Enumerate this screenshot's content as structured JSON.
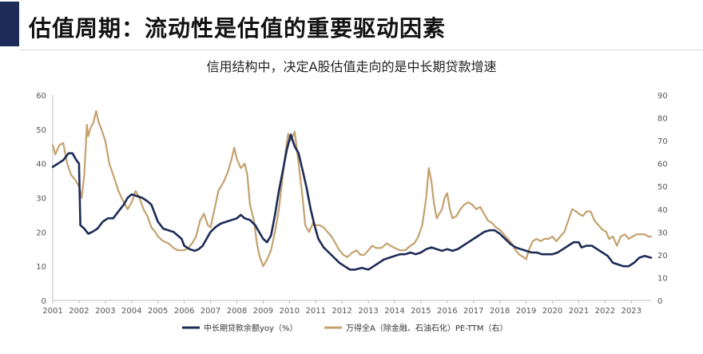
{
  "header": {
    "title": "估值周期：流动性是估值的重要驱动因素"
  },
  "colors": {
    "accent": "#1c2b57",
    "series_loan": "#1c2b57",
    "series_pe": "#c4a16e"
  },
  "chart_data": {
    "type": "line",
    "title": "信用结构中，决定A股估值走向的是中长期贷款增速",
    "xlabel": "",
    "ylabel": "",
    "xlim": [
      2001,
      2023.75
    ],
    "ylim_left": [
      0,
      60
    ],
    "ylim_right": [
      0,
      90
    ],
    "left_ticks": [
      "0",
      "10",
      "20",
      "30",
      "40",
      "50",
      "60"
    ],
    "right_ticks": [
      "0",
      "10",
      "20",
      "30",
      "40",
      "50",
      "60",
      "70",
      "80",
      "90"
    ],
    "x_ticks": [
      "2001",
      "2002",
      "2003",
      "2004",
      "2005",
      "2006",
      "2007",
      "2008",
      "2009",
      "2010",
      "2011",
      "2012",
      "2013",
      "2014",
      "2015",
      "2016",
      "2017",
      "2018",
      "2019",
      "2020",
      "2021",
      "2022",
      "2023"
    ],
    "grid": false,
    "legend_position": "bottom",
    "series": [
      {
        "name": "中长期贷款余额yoy（%）",
        "axis": "left",
        "points": [
          [
            2001.0,
            39
          ],
          [
            2001.2,
            40
          ],
          [
            2001.4,
            41
          ],
          [
            2001.6,
            43
          ],
          [
            2001.75,
            43
          ],
          [
            2001.9,
            41
          ],
          [
            2002.0,
            40
          ],
          [
            2002.05,
            22
          ],
          [
            2002.2,
            21
          ],
          [
            2002.35,
            19.5
          ],
          [
            2002.5,
            20
          ],
          [
            2002.7,
            21
          ],
          [
            2002.9,
            23
          ],
          [
            2003.1,
            24
          ],
          [
            2003.3,
            24
          ],
          [
            2003.5,
            26
          ],
          [
            2003.7,
            28
          ],
          [
            2003.85,
            30
          ],
          [
            2004.0,
            31
          ],
          [
            2004.2,
            30.5
          ],
          [
            2004.4,
            30
          ],
          [
            2004.6,
            29
          ],
          [
            2004.75,
            28
          ],
          [
            2004.9,
            25
          ],
          [
            2005.0,
            23
          ],
          [
            2005.2,
            21
          ],
          [
            2005.4,
            20.5
          ],
          [
            2005.6,
            20
          ],
          [
            2005.75,
            19
          ],
          [
            2005.9,
            18
          ],
          [
            2006.0,
            16
          ],
          [
            2006.2,
            15
          ],
          [
            2006.4,
            14.5
          ],
          [
            2006.55,
            15
          ],
          [
            2006.7,
            16
          ],
          [
            2006.85,
            18
          ],
          [
            2007.0,
            20
          ],
          [
            2007.2,
            21.5
          ],
          [
            2007.4,
            22.5
          ],
          [
            2007.6,
            23
          ],
          [
            2007.8,
            23.5
          ],
          [
            2008.0,
            24
          ],
          [
            2008.15,
            25
          ],
          [
            2008.3,
            24
          ],
          [
            2008.5,
            23.5
          ],
          [
            2008.7,
            22
          ],
          [
            2008.85,
            20
          ],
          [
            2009.0,
            18
          ],
          [
            2009.15,
            17
          ],
          [
            2009.3,
            19
          ],
          [
            2009.45,
            25
          ],
          [
            2009.6,
            32
          ],
          [
            2009.75,
            38
          ],
          [
            2009.9,
            44
          ],
          [
            2010.05,
            48.5
          ],
          [
            2010.2,
            45
          ],
          [
            2010.35,
            43
          ],
          [
            2010.5,
            38
          ],
          [
            2010.65,
            33
          ],
          [
            2010.8,
            27
          ],
          [
            2010.95,
            22
          ],
          [
            2011.1,
            18
          ],
          [
            2011.3,
            15.5
          ],
          [
            2011.5,
            14
          ],
          [
            2011.7,
            12.5
          ],
          [
            2011.9,
            11
          ],
          [
            2012.1,
            10
          ],
          [
            2012.3,
            9
          ],
          [
            2012.5,
            9
          ],
          [
            2012.75,
            9.5
          ],
          [
            2013.0,
            9
          ],
          [
            2013.2,
            10
          ],
          [
            2013.4,
            11
          ],
          [
            2013.6,
            12
          ],
          [
            2013.8,
            12.5
          ],
          [
            2014.0,
            13
          ],
          [
            2014.2,
            13.5
          ],
          [
            2014.4,
            13.5
          ],
          [
            2014.6,
            14
          ],
          [
            2014.8,
            13.5
          ],
          [
            2015.0,
            14
          ],
          [
            2015.2,
            15
          ],
          [
            2015.4,
            15.5
          ],
          [
            2015.6,
            15
          ],
          [
            2015.8,
            14.5
          ],
          [
            2016.0,
            15
          ],
          [
            2016.2,
            14.5
          ],
          [
            2016.4,
            15
          ],
          [
            2016.6,
            16
          ],
          [
            2016.8,
            17
          ],
          [
            2017.0,
            18
          ],
          [
            2017.2,
            19
          ],
          [
            2017.4,
            20
          ],
          [
            2017.6,
            20.5
          ],
          [
            2017.8,
            20.5
          ],
          [
            2018.0,
            19.5
          ],
          [
            2018.2,
            18
          ],
          [
            2018.4,
            16.5
          ],
          [
            2018.6,
            15.5
          ],
          [
            2018.8,
            15
          ],
          [
            2019.0,
            14.5
          ],
          [
            2019.2,
            14
          ],
          [
            2019.4,
            14
          ],
          [
            2019.6,
            13.5
          ],
          [
            2019.8,
            13.5
          ],
          [
            2020.0,
            13.5
          ],
          [
            2020.2,
            14
          ],
          [
            2020.4,
            15
          ],
          [
            2020.6,
            16
          ],
          [
            2020.8,
            17
          ],
          [
            2021.0,
            17
          ],
          [
            2021.1,
            15.5
          ],
          [
            2021.3,
            16
          ],
          [
            2021.5,
            16
          ],
          [
            2021.7,
            15
          ],
          [
            2021.9,
            14
          ],
          [
            2022.1,
            13
          ],
          [
            2022.3,
            11
          ],
          [
            2022.5,
            10.5
          ],
          [
            2022.7,
            10
          ],
          [
            2022.9,
            10
          ],
          [
            2023.1,
            11
          ],
          [
            2023.3,
            12.5
          ],
          [
            2023.5,
            13
          ],
          [
            2023.75,
            12.5
          ]
        ]
      },
      {
        "name": "万得全A（除金融、石油石化）PE-TTM（右）",
        "axis": "right",
        "points": [
          [
            2001.0,
            68
          ],
          [
            2001.1,
            64
          ],
          [
            2001.25,
            68
          ],
          [
            2001.4,
            69
          ],
          [
            2001.55,
            60
          ],
          [
            2001.7,
            55
          ],
          [
            2001.85,
            53
          ],
          [
            2002.0,
            50
          ],
          [
            2002.1,
            45
          ],
          [
            2002.2,
            55
          ],
          [
            2002.3,
            77
          ],
          [
            2002.35,
            72
          ],
          [
            2002.45,
            76
          ],
          [
            2002.55,
            78
          ],
          [
            2002.65,
            83
          ],
          [
            2002.75,
            78
          ],
          [
            2002.85,
            75
          ],
          [
            2003.0,
            70
          ],
          [
            2003.15,
            60
          ],
          [
            2003.3,
            55
          ],
          [
            2003.5,
            48
          ],
          [
            2003.7,
            43
          ],
          [
            2003.85,
            40
          ],
          [
            2004.0,
            43
          ],
          [
            2004.15,
            48
          ],
          [
            2004.3,
            45
          ],
          [
            2004.45,
            40
          ],
          [
            2004.6,
            37
          ],
          [
            2004.75,
            32
          ],
          [
            2004.9,
            30
          ],
          [
            2005.0,
            28
          ],
          [
            2005.2,
            26
          ],
          [
            2005.4,
            25
          ],
          [
            2005.6,
            23
          ],
          [
            2005.75,
            22
          ],
          [
            2005.9,
            22
          ],
          [
            2006.0,
            22
          ],
          [
            2006.15,
            23
          ],
          [
            2006.3,
            25
          ],
          [
            2006.45,
            28
          ],
          [
            2006.6,
            35
          ],
          [
            2006.75,
            38
          ],
          [
            2006.9,
            33
          ],
          [
            2007.0,
            32
          ],
          [
            2007.15,
            40
          ],
          [
            2007.3,
            48
          ],
          [
            2007.5,
            52
          ],
          [
            2007.65,
            56
          ],
          [
            2007.8,
            62
          ],
          [
            2007.9,
            67
          ],
          [
            2008.0,
            62
          ],
          [
            2008.15,
            58
          ],
          [
            2008.3,
            60
          ],
          [
            2008.4,
            55
          ],
          [
            2008.5,
            42
          ],
          [
            2008.65,
            35
          ],
          [
            2008.75,
            26
          ],
          [
            2008.85,
            20
          ],
          [
            2009.0,
            15
          ],
          [
            2009.15,
            18
          ],
          [
            2009.3,
            22
          ],
          [
            2009.45,
            30
          ],
          [
            2009.6,
            40
          ],
          [
            2009.75,
            55
          ],
          [
            2009.85,
            65
          ],
          [
            2009.95,
            73
          ],
          [
            2010.05,
            70
          ],
          [
            2010.2,
            74
          ],
          [
            2010.35,
            60
          ],
          [
            2010.5,
            45
          ],
          [
            2010.6,
            33
          ],
          [
            2010.75,
            30
          ],
          [
            2010.9,
            34
          ],
          [
            2011.0,
            33
          ],
          [
            2011.15,
            33
          ],
          [
            2011.3,
            32
          ],
          [
            2011.45,
            30
          ],
          [
            2011.6,
            28
          ],
          [
            2011.75,
            25
          ],
          [
            2011.9,
            22
          ],
          [
            2012.05,
            20
          ],
          [
            2012.2,
            19
          ],
          [
            2012.4,
            21
          ],
          [
            2012.55,
            22
          ],
          [
            2012.7,
            20
          ],
          [
            2012.85,
            20
          ],
          [
            2013.0,
            22
          ],
          [
            2013.15,
            24
          ],
          [
            2013.3,
            23
          ],
          [
            2013.5,
            23
          ],
          [
            2013.7,
            25
          ],
          [
            2013.85,
            24
          ],
          [
            2014.0,
            23
          ],
          [
            2014.2,
            22
          ],
          [
            2014.4,
            22
          ],
          [
            2014.6,
            24
          ],
          [
            2014.75,
            25
          ],
          [
            2014.9,
            28
          ],
          [
            2015.05,
            33
          ],
          [
            2015.2,
            45
          ],
          [
            2015.3,
            58
          ],
          [
            2015.4,
            52
          ],
          [
            2015.5,
            42
          ],
          [
            2015.6,
            36
          ],
          [
            2015.7,
            38
          ],
          [
            2015.8,
            40
          ],
          [
            2015.9,
            45
          ],
          [
            2016.0,
            47
          ],
          [
            2016.1,
            40
          ],
          [
            2016.2,
            36
          ],
          [
            2016.35,
            37
          ],
          [
            2016.5,
            40
          ],
          [
            2016.65,
            42
          ],
          [
            2016.8,
            43
          ],
          [
            2016.95,
            42
          ],
          [
            2017.1,
            40
          ],
          [
            2017.25,
            41
          ],
          [
            2017.4,
            38
          ],
          [
            2017.55,
            35
          ],
          [
            2017.7,
            34
          ],
          [
            2017.85,
            32
          ],
          [
            2018.0,
            31
          ],
          [
            2018.15,
            29
          ],
          [
            2018.3,
            27
          ],
          [
            2018.45,
            25
          ],
          [
            2018.6,
            22
          ],
          [
            2018.75,
            20
          ],
          [
            2018.9,
            19
          ],
          [
            2019.0,
            18
          ],
          [
            2019.1,
            22
          ],
          [
            2019.25,
            26
          ],
          [
            2019.4,
            27
          ],
          [
            2019.55,
            26
          ],
          [
            2019.7,
            27
          ],
          [
            2019.85,
            27
          ],
          [
            2020.0,
            28
          ],
          [
            2020.15,
            26
          ],
          [
            2020.3,
            28
          ],
          [
            2020.45,
            30
          ],
          [
            2020.6,
            35
          ],
          [
            2020.75,
            40
          ],
          [
            2020.9,
            39
          ],
          [
            2021.0,
            38
          ],
          [
            2021.15,
            37
          ],
          [
            2021.3,
            39
          ],
          [
            2021.45,
            39
          ],
          [
            2021.6,
            35
          ],
          [
            2021.75,
            33
          ],
          [
            2021.9,
            31
          ],
          [
            2022.05,
            30
          ],
          [
            2022.15,
            27
          ],
          [
            2022.3,
            28
          ],
          [
            2022.45,
            24
          ],
          [
            2022.6,
            28
          ],
          [
            2022.75,
            29
          ],
          [
            2022.9,
            27
          ],
          [
            2023.05,
            28
          ],
          [
            2023.2,
            29
          ],
          [
            2023.35,
            29
          ],
          [
            2023.5,
            29
          ],
          [
            2023.65,
            28
          ],
          [
            2023.75,
            28
          ]
        ]
      }
    ]
  }
}
